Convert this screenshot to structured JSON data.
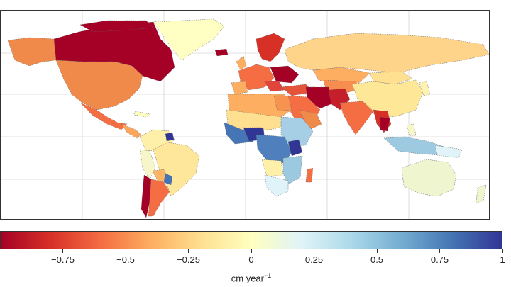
{
  "colorbar": {
    "unit_base": "cm year",
    "unit_exp": "−1",
    "ticks": [
      {
        "label": "−0.75",
        "value": -0.75
      },
      {
        "label": "−0.5",
        "value": -0.5
      },
      {
        "label": "−0.25",
        "value": -0.25
      },
      {
        "label": "0",
        "value": 0
      },
      {
        "label": "0.25",
        "value": 0.25
      },
      {
        "label": "0.5",
        "value": 0.5
      },
      {
        "label": "0.75",
        "value": 0.75
      },
      {
        "label": "1",
        "value": 1
      }
    ],
    "range": [
      -1,
      1
    ],
    "colors": [
      "#a50026",
      "#d73027",
      "#f46d43",
      "#fdae61",
      "#fee090",
      "#ffffbf",
      "#e0f3f8",
      "#abd9e9",
      "#74add1",
      "#4575b4",
      "#313695"
    ]
  }
}
